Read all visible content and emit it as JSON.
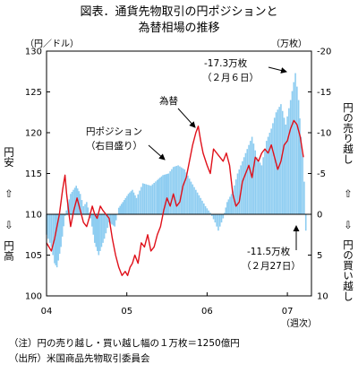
{
  "chart_data": {
    "type": "bar+line",
    "title_lines": [
      "図表．通貨先物取引の円ポジションと",
      "為替相場の推移"
    ],
    "left_axis": {
      "unit": "（円／ドル）",
      "ticks": [
        "130",
        "125",
        "120",
        "115",
        "110",
        "105",
        "100"
      ],
      "range": [
        100,
        130
      ]
    },
    "right_axis": {
      "unit": "（万枚）",
      "ticks": [
        "-20",
        "-15",
        "-10",
        "-5",
        "0",
        "5",
        "10"
      ],
      "range": [
        10,
        -20
      ]
    },
    "x_axis": {
      "ticks": [
        "04",
        "05",
        "06",
        "07"
      ],
      "unit": "（週次）",
      "range": [
        2004.0,
        2007.3
      ]
    },
    "left_side_label": {
      "top": "円安",
      "bottom": "円高",
      "arrows": [
        "⇧",
        "⇩"
      ]
    },
    "right_side_label": {
      "top": "円の売り越し",
      "bottom": "円の買い越し",
      "arrows": [
        "⇧",
        "⇩"
      ]
    },
    "annotations": {
      "peak_short": [
        "-17.3万枚",
        "（２月６日）"
      ],
      "peak_long": [
        "-11.5万枚",
        "（２月27日）"
      ],
      "position_label": [
        "円ポジション",
        "（右目盛り）"
      ],
      "rate_label": "為替"
    },
    "notes": [
      "（注）円の売り越し・買い越し幅の１万枚＝1250億円",
      "（出所）米国商品先物取引委員会"
    ],
    "colors": {
      "position_bars": "#8ecdf1",
      "rate_line": "#e0101a",
      "frame": "#000000"
    },
    "series": [
      {
        "name": "円ポジション",
        "axis": "right",
        "kind": "bar",
        "points": [
          [
            2004.0,
            2.5
          ],
          [
            2004.06,
            4.0
          ],
          [
            2004.1,
            6.0
          ],
          [
            2004.13,
            6.5
          ],
          [
            2004.18,
            4.0
          ],
          [
            2004.23,
            0.2
          ],
          [
            2004.3,
            -2.5
          ],
          [
            2004.37,
            -3.5
          ],
          [
            2004.42,
            -2.5
          ],
          [
            2004.46,
            -1.0
          ],
          [
            2004.5,
            -1.5
          ],
          [
            2004.55,
            0.5
          ],
          [
            2004.6,
            3.5
          ],
          [
            2004.65,
            5.0
          ],
          [
            2004.72,
            3.0
          ],
          [
            2004.78,
            1.0
          ],
          [
            2004.85,
            1.5
          ],
          [
            2004.9,
            -0.8
          ],
          [
            2004.95,
            -1.5
          ],
          [
            2005.02,
            -2.5
          ],
          [
            2005.07,
            -3.0
          ],
          [
            2005.12,
            -2.0
          ],
          [
            2005.2,
            -3.8
          ],
          [
            2005.3,
            -3.5
          ],
          [
            2005.38,
            -4.2
          ],
          [
            2005.45,
            -4.8
          ],
          [
            2005.52,
            -5.0
          ],
          [
            2005.58,
            -5.8
          ],
          [
            2005.64,
            -6.0
          ],
          [
            2005.72,
            -5.5
          ],
          [
            2005.8,
            -4.0
          ],
          [
            2005.86,
            -3.0
          ],
          [
            2005.92,
            -2.0
          ],
          [
            2005.98,
            -1.0
          ],
          [
            2006.04,
            -0.2
          ],
          [
            2006.1,
            1.0
          ],
          [
            2006.14,
            2.0
          ],
          [
            2006.2,
            0.5
          ],
          [
            2006.25,
            -1.5
          ],
          [
            2006.32,
            -2.8
          ],
          [
            2006.38,
            -5.0
          ],
          [
            2006.44,
            -6.5
          ],
          [
            2006.5,
            -8.0
          ],
          [
            2006.56,
            -9.5
          ],
          [
            2006.62,
            -7.0
          ],
          [
            2006.68,
            -6.0
          ],
          [
            2006.74,
            -9.0
          ],
          [
            2006.8,
            -10.5
          ],
          [
            2006.86,
            -12.5
          ],
          [
            2006.92,
            -13.5
          ],
          [
            2006.98,
            -11.0
          ],
          [
            2007.04,
            -14.0
          ],
          [
            2007.1,
            -17.3
          ],
          [
            2007.14,
            -14.0
          ],
          [
            2007.17,
            -9.5
          ],
          [
            2007.19,
            -7.5
          ],
          [
            2007.21,
            -4.0
          ],
          [
            2007.23,
            2.0
          ]
        ]
      },
      {
        "name": "為替",
        "axis": "left",
        "kind": "line",
        "points": [
          [
            2004.0,
            106.5
          ],
          [
            2004.03,
            106.0
          ],
          [
            2004.06,
            105.5
          ],
          [
            2004.1,
            107.0
          ],
          [
            2004.13,
            108.5
          ],
          [
            2004.16,
            110.0
          ],
          [
            2004.18,
            111.5
          ],
          [
            2004.2,
            113.0
          ],
          [
            2004.23,
            114.8
          ],
          [
            2004.25,
            112.5
          ],
          [
            2004.28,
            110.0
          ],
          [
            2004.3,
            108.5
          ],
          [
            2004.34,
            110.5
          ],
          [
            2004.38,
            112.0
          ],
          [
            2004.42,
            110.5
          ],
          [
            2004.46,
            109.0
          ],
          [
            2004.5,
            108.5
          ],
          [
            2004.53,
            109.5
          ],
          [
            2004.57,
            111.0
          ],
          [
            2004.6,
            110.0
          ],
          [
            2004.63,
            109.5
          ],
          [
            2004.67,
            111.0
          ],
          [
            2004.7,
            110.5
          ],
          [
            2004.74,
            110.0
          ],
          [
            2004.78,
            109.5
          ],
          [
            2004.82,
            107.0
          ],
          [
            2004.86,
            105.0
          ],
          [
            2004.9,
            103.5
          ],
          [
            2004.94,
            102.5
          ],
          [
            2004.98,
            103.0
          ],
          [
            2005.01,
            102.5
          ],
          [
            2005.04,
            103.5
          ],
          [
            2005.07,
            104.0
          ],
          [
            2005.1,
            105.0
          ],
          [
            2005.14,
            104.0
          ],
          [
            2005.18,
            106.5
          ],
          [
            2005.22,
            106.0
          ],
          [
            2005.26,
            107.5
          ],
          [
            2005.3,
            105.5
          ],
          [
            2005.34,
            106.0
          ],
          [
            2005.38,
            107.5
          ],
          [
            2005.42,
            108.5
          ],
          [
            2005.46,
            110.5
          ],
          [
            2005.5,
            112.0
          ],
          [
            2005.54,
            111.0
          ],
          [
            2005.58,
            112.5
          ],
          [
            2005.62,
            111.0
          ],
          [
            2005.66,
            111.5
          ],
          [
            2005.7,
            113.5
          ],
          [
            2005.74,
            114.5
          ],
          [
            2005.78,
            116.5
          ],
          [
            2005.82,
            118.5
          ],
          [
            2005.86,
            120.0
          ],
          [
            2005.89,
            120.8
          ],
          [
            2005.92,
            119.0
          ],
          [
            2005.95,
            117.5
          ],
          [
            2006.0,
            116.0
          ],
          [
            2006.04,
            115.0
          ],
          [
            2006.08,
            118.0
          ],
          [
            2006.12,
            117.5
          ],
          [
            2006.16,
            117.0
          ],
          [
            2006.2,
            116.5
          ],
          [
            2006.24,
            117.5
          ],
          [
            2006.28,
            116.0
          ],
          [
            2006.32,
            112.5
          ],
          [
            2006.36,
            111.0
          ],
          [
            2006.4,
            111.5
          ],
          [
            2006.44,
            114.0
          ],
          [
            2006.48,
            115.0
          ],
          [
            2006.52,
            116.0
          ],
          [
            2006.56,
            114.5
          ],
          [
            2006.6,
            117.0
          ],
          [
            2006.64,
            116.5
          ],
          [
            2006.68,
            117.5
          ],
          [
            2006.72,
            118.0
          ],
          [
            2006.76,
            117.5
          ],
          [
            2006.8,
            118.5
          ],
          [
            2006.84,
            117.0
          ],
          [
            2006.88,
            115.5
          ],
          [
            2006.92,
            116.5
          ],
          [
            2006.96,
            118.5
          ],
          [
            2007.0,
            119.0
          ],
          [
            2007.04,
            120.5
          ],
          [
            2007.08,
            121.5
          ],
          [
            2007.12,
            121.0
          ],
          [
            2007.16,
            119.5
          ],
          [
            2007.2,
            117.0
          ]
        ]
      }
    ]
  }
}
